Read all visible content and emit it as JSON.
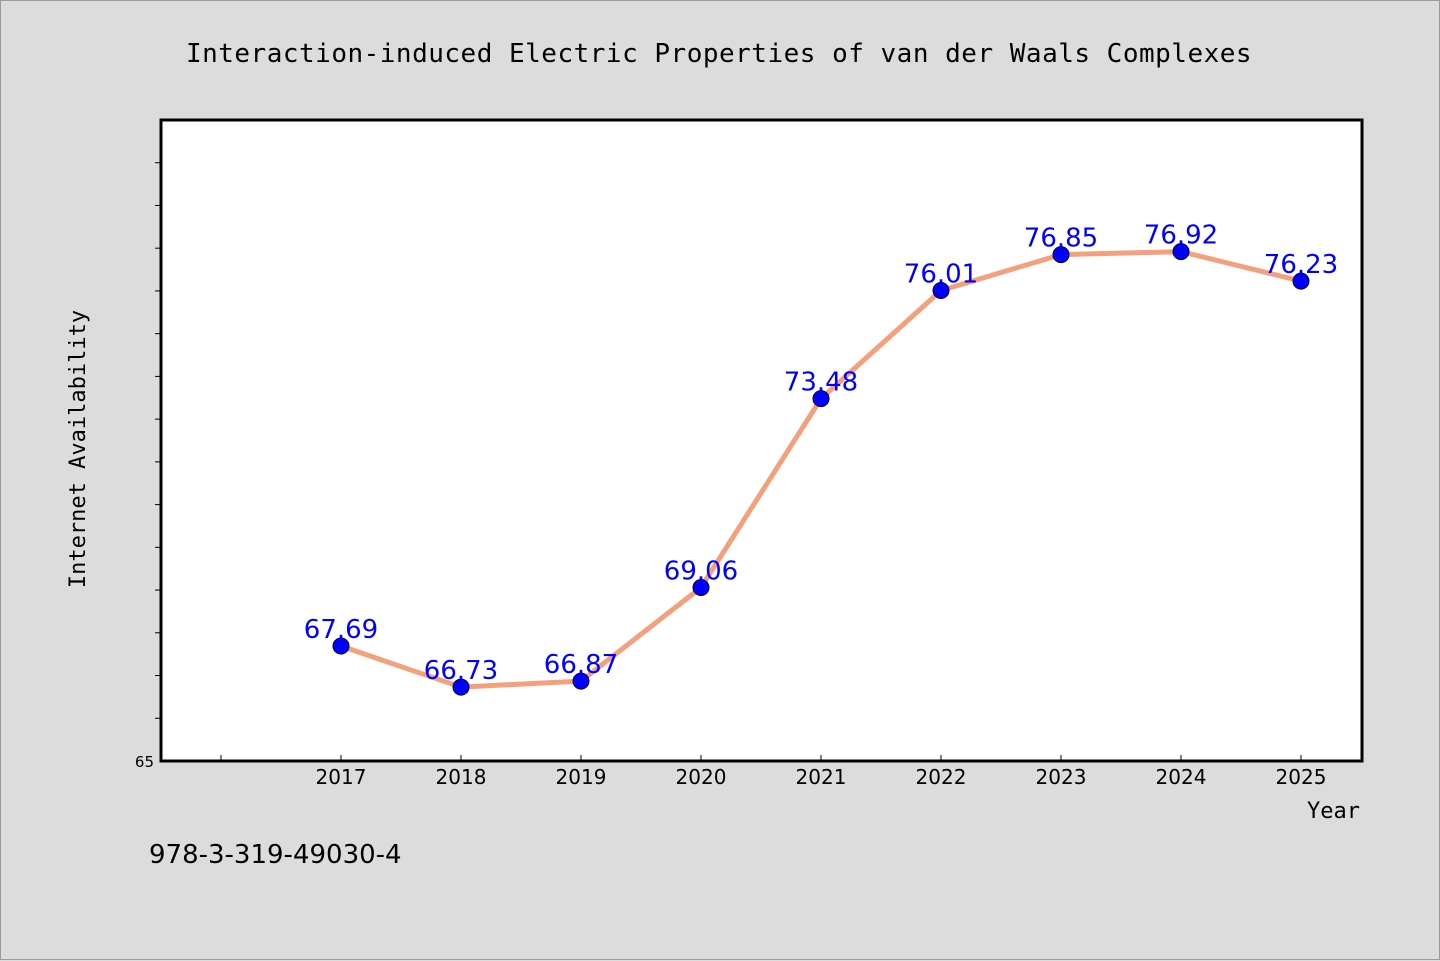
{
  "footer_text": "978-3-319-49030-4",
  "colors": {
    "line": "#f5a07c",
    "marker": "#0000ff",
    "data_label": "#0000ff",
    "background": "#dcdcdc",
    "plot_background": "#ffffff"
  },
  "chart_data": {
    "type": "line",
    "title": "Interaction-induced Electric Properties of van der Waals Complexes",
    "xlabel": "Year",
    "ylabel": "Internet Availability",
    "categories": [
      "2017",
      "2018",
      "2019",
      "2020",
      "2021",
      "2022",
      "2023",
      "2024",
      "2025"
    ],
    "series": [
      {
        "values": [
          67.69,
          66.73,
          66.87,
          69.06,
          73.48,
          76.01,
          76.85,
          76.92,
          76.23
        ]
      }
    ],
    "data_labels": [
      "67.69",
      "66.73",
      "66.87",
      "69.06",
      "73.48",
      "76.01",
      "76.85",
      "76.92",
      "76.23"
    ],
    "y_min_label": "65",
    "ylim": [
      65,
      80
    ],
    "y_minor_ticks": [
      66,
      67,
      68,
      69,
      70,
      71,
      72,
      73,
      74,
      75,
      76,
      77,
      78,
      79
    ],
    "grid": false,
    "legend": "none"
  }
}
